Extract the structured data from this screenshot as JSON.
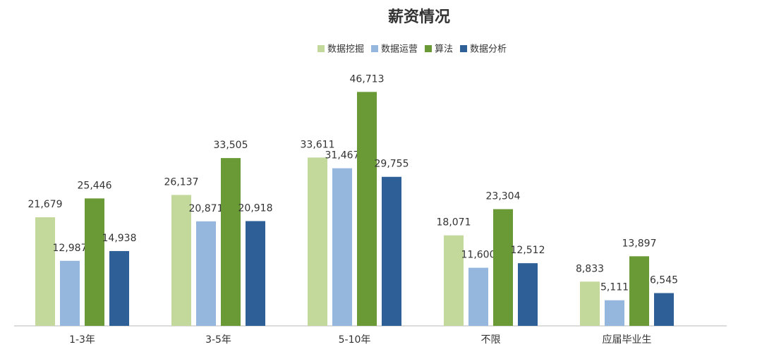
{
  "chart_data": {
    "type": "bar",
    "title": "薪资情况",
    "categories": [
      "1-3年",
      "3-5年",
      "5-10年",
      "不限",
      "应届毕业生"
    ],
    "series": [
      {
        "name": "数据挖掘",
        "color": "#c3d89b",
        "values": [
          21679,
          26137,
          33611,
          18071,
          8833
        ],
        "value_labels": [
          "21,679",
          "26,137",
          "33,611",
          "18,071",
          "8,833"
        ]
      },
      {
        "name": "数据运营",
        "color": "#95b7de",
        "values": [
          12987,
          20871,
          31467,
          11600,
          5111
        ],
        "value_labels": [
          "12,987",
          "20,871",
          "31,467",
          "11,600",
          "5,111"
        ]
      },
      {
        "name": "算法",
        "color": "#6a9a35",
        "values": [
          25446,
          33505,
          46713,
          23304,
          13897
        ],
        "value_labels": [
          "25,446",
          "33,505",
          "46,713",
          "23,304",
          "13,897"
        ]
      },
      {
        "name": "数据分析",
        "color": "#2e5f96",
        "values": [
          14938,
          20918,
          29755,
          12512,
          6545
        ],
        "value_labels": [
          "14,938",
          "20,918",
          "29,755",
          "12,512",
          "6,545"
        ]
      }
    ],
    "ylim": [
      0,
      50000
    ],
    "legend": "top"
  }
}
